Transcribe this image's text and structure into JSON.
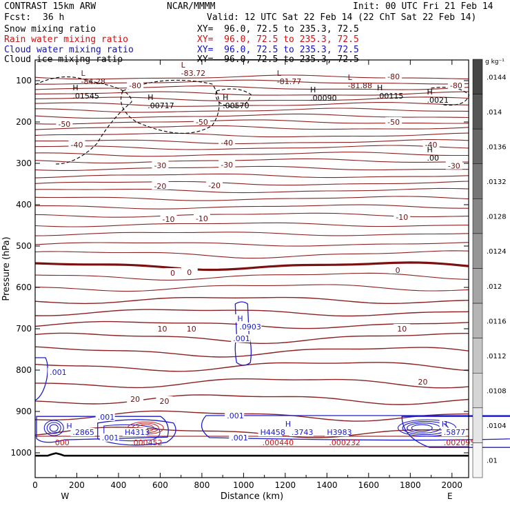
{
  "header": {
    "model": "CONTRAST 15km ARW",
    "org": "NCAR/MMMM",
    "init": "Init: 00 UTC Fri 21 Feb 14",
    "fcst_label": "Fcst:",
    "fcst_value": "36 h",
    "valid": "Valid: 12 UTC Sat 22 Feb 14 (22 ChT Sat 22 Feb 14)",
    "rows": [
      {
        "field": "Snow mixing ratio",
        "xy": "XY=  96.0, 72.5 to 235.3, 72.5",
        "color": "#000000"
      },
      {
        "field": "Rain water mixing ratio",
        "xy": "XY=  96.0, 72.5 to 235.3, 72.5",
        "color": "#d01010"
      },
      {
        "field": "Cloud water mixing ratio",
        "xy": "XY=  96.0, 72.5 to 235.3, 72.5",
        "color": "#1010c0"
      },
      {
        "field": "Cloud ice mixing ratio",
        "xy": "XY=  96.0, 72.5 to 235.3, 72.5",
        "color": "#000000"
      }
    ]
  },
  "chart_data": {
    "type": "contour",
    "xlabel": "Distance (km)",
    "ylabel": "Pressure (hPa)",
    "xlim": [
      0,
      2080
    ],
    "ylim": [
      1060,
      50
    ],
    "x_ticks": [
      0,
      200,
      400,
      600,
      800,
      1000,
      1200,
      1400,
      1600,
      1800,
      2000
    ],
    "y_ticks": [
      100,
      200,
      300,
      400,
      500,
      600,
      700,
      800,
      900,
      1000
    ],
    "x_ends": {
      "left": "W",
      "right": "E"
    },
    "colorbar": {
      "unit": "g kg⁻¹",
      "labels": [
        ".0144",
        ".014",
        ".0136",
        ".0132",
        ".0128",
        ".0124",
        ".012",
        ".0116",
        ".0112",
        ".0108",
        ".0104",
        ".01"
      ]
    },
    "temperature_contour_labels": [
      {
        "text": "-80",
        "x": 480,
        "p": 112
      },
      {
        "text": "-80",
        "x": 1720,
        "p": 90
      },
      {
        "text": "-80",
        "x": 2020,
        "p": 112
      },
      {
        "text": "-50",
        "x": 140,
        "p": 205
      },
      {
        "text": "-50",
        "x": 800,
        "p": 200
      },
      {
        "text": "-50",
        "x": 1720,
        "p": 200
      },
      {
        "text": "-40",
        "x": 200,
        "p": 255
      },
      {
        "text": "-40",
        "x": 920,
        "p": 250
      },
      {
        "text": "-40",
        "x": 1900,
        "p": 255
      },
      {
        "text": "-30",
        "x": 600,
        "p": 305
      },
      {
        "text": "-30",
        "x": 920,
        "p": 303
      },
      {
        "text": "-30",
        "x": 2010,
        "p": 306
      },
      {
        "text": "-20",
        "x": 600,
        "p": 355
      },
      {
        "text": "-20",
        "x": 860,
        "p": 353
      },
      {
        "text": "-10",
        "x": 640,
        "p": 435
      },
      {
        "text": "-10",
        "x": 800,
        "p": 433
      },
      {
        "text": "-10",
        "x": 1760,
        "p": 430
      },
      {
        "text": "0",
        "x": 660,
        "p": 565
      },
      {
        "text": "0",
        "x": 740,
        "p": 563
      },
      {
        "text": "0",
        "x": 1740,
        "p": 558
      },
      {
        "text": "10",
        "x": 610,
        "p": 700
      },
      {
        "text": "10",
        "x": 750,
        "p": 700
      },
      {
        "text": "10",
        "x": 1760,
        "p": 700
      },
      {
        "text": "20",
        "x": 480,
        "p": 870
      },
      {
        "text": "20",
        "x": 620,
        "p": 875
      },
      {
        "text": "20",
        "x": 1860,
        "p": 828
      }
    ],
    "extrema": [
      {
        "kind": "L",
        "value": "-84.28",
        "x": 220,
        "p": 105
      },
      {
        "kind": "L",
        "value": "-83.72",
        "x": 700,
        "p": 85
      },
      {
        "kind": "L",
        "value": "-81.77",
        "x": 1160,
        "p": 105
      },
      {
        "kind": "L",
        "value": "-81.88",
        "x": 1500,
        "p": 115
      },
      {
        "kind": "H",
        "value": ".01545",
        "x": 180,
        "p": 140
      },
      {
        "kind": "H",
        "value": ".00717",
        "x": 540,
        "p": 163
      },
      {
        "kind": "H",
        "value": ".00570",
        "x": 900,
        "p": 163
      },
      {
        "kind": "H",
        "value": ".00090",
        "x": 1320,
        "p": 145
      },
      {
        "kind": "H",
        "value": ".00115",
        "x": 1640,
        "p": 140
      },
      {
        "kind": "H",
        "value": ".0021",
        "x": 1880,
        "p": 150
      },
      {
        "kind": "H",
        "value": ".00",
        "x": 1880,
        "p": 290
      }
    ],
    "cloud_water_labels": [
      {
        "text": "H",
        "x": 970,
        "p": 680
      },
      {
        "text": ".0903",
        "x": 980,
        "p": 700
      },
      {
        "text": ".001",
        "x": 950,
        "p": 728
      },
      {
        "text": ".001",
        "x": 70,
        "p": 810
      },
      {
        "text": ".001",
        "x": 300,
        "p": 918
      },
      {
        "text": ".001",
        "x": 320,
        "p": 968
      },
      {
        "text": ".001",
        "x": 920,
        "p": 915
      },
      {
        "text": ".001",
        "x": 940,
        "p": 968
      },
      {
        "text": "H",
        "x": 150,
        "p": 940
      },
      {
        "text": ".2865",
        "x": 180,
        "p": 955
      },
      {
        "text": "H4313",
        "x": 430,
        "p": 955
      },
      {
        "text": "H4458",
        "x": 1080,
        "p": 955
      },
      {
        "text": "H",
        "x": 1200,
        "p": 935
      },
      {
        "text": ".3743",
        "x": 1230,
        "p": 955
      },
      {
        "text": "H3983",
        "x": 1400,
        "p": 955
      },
      {
        "text": "H",
        "x": 1950,
        "p": 935
      },
      {
        "text": ".5877",
        "x": 1960,
        "p": 955
      }
    ],
    "rain_labels": [
      {
        "text": ".000452",
        "x": 460,
        "p": 975
      },
      {
        "text": ".000440",
        "x": 1090,
        "p": 975
      },
      {
        "text": ".000232",
        "x": 1410,
        "p": 975
      },
      {
        "text": ".002095",
        "x": 1960,
        "p": 975
      },
      {
        "text": "000",
        "x": 95,
        "p": 975
      }
    ]
  }
}
